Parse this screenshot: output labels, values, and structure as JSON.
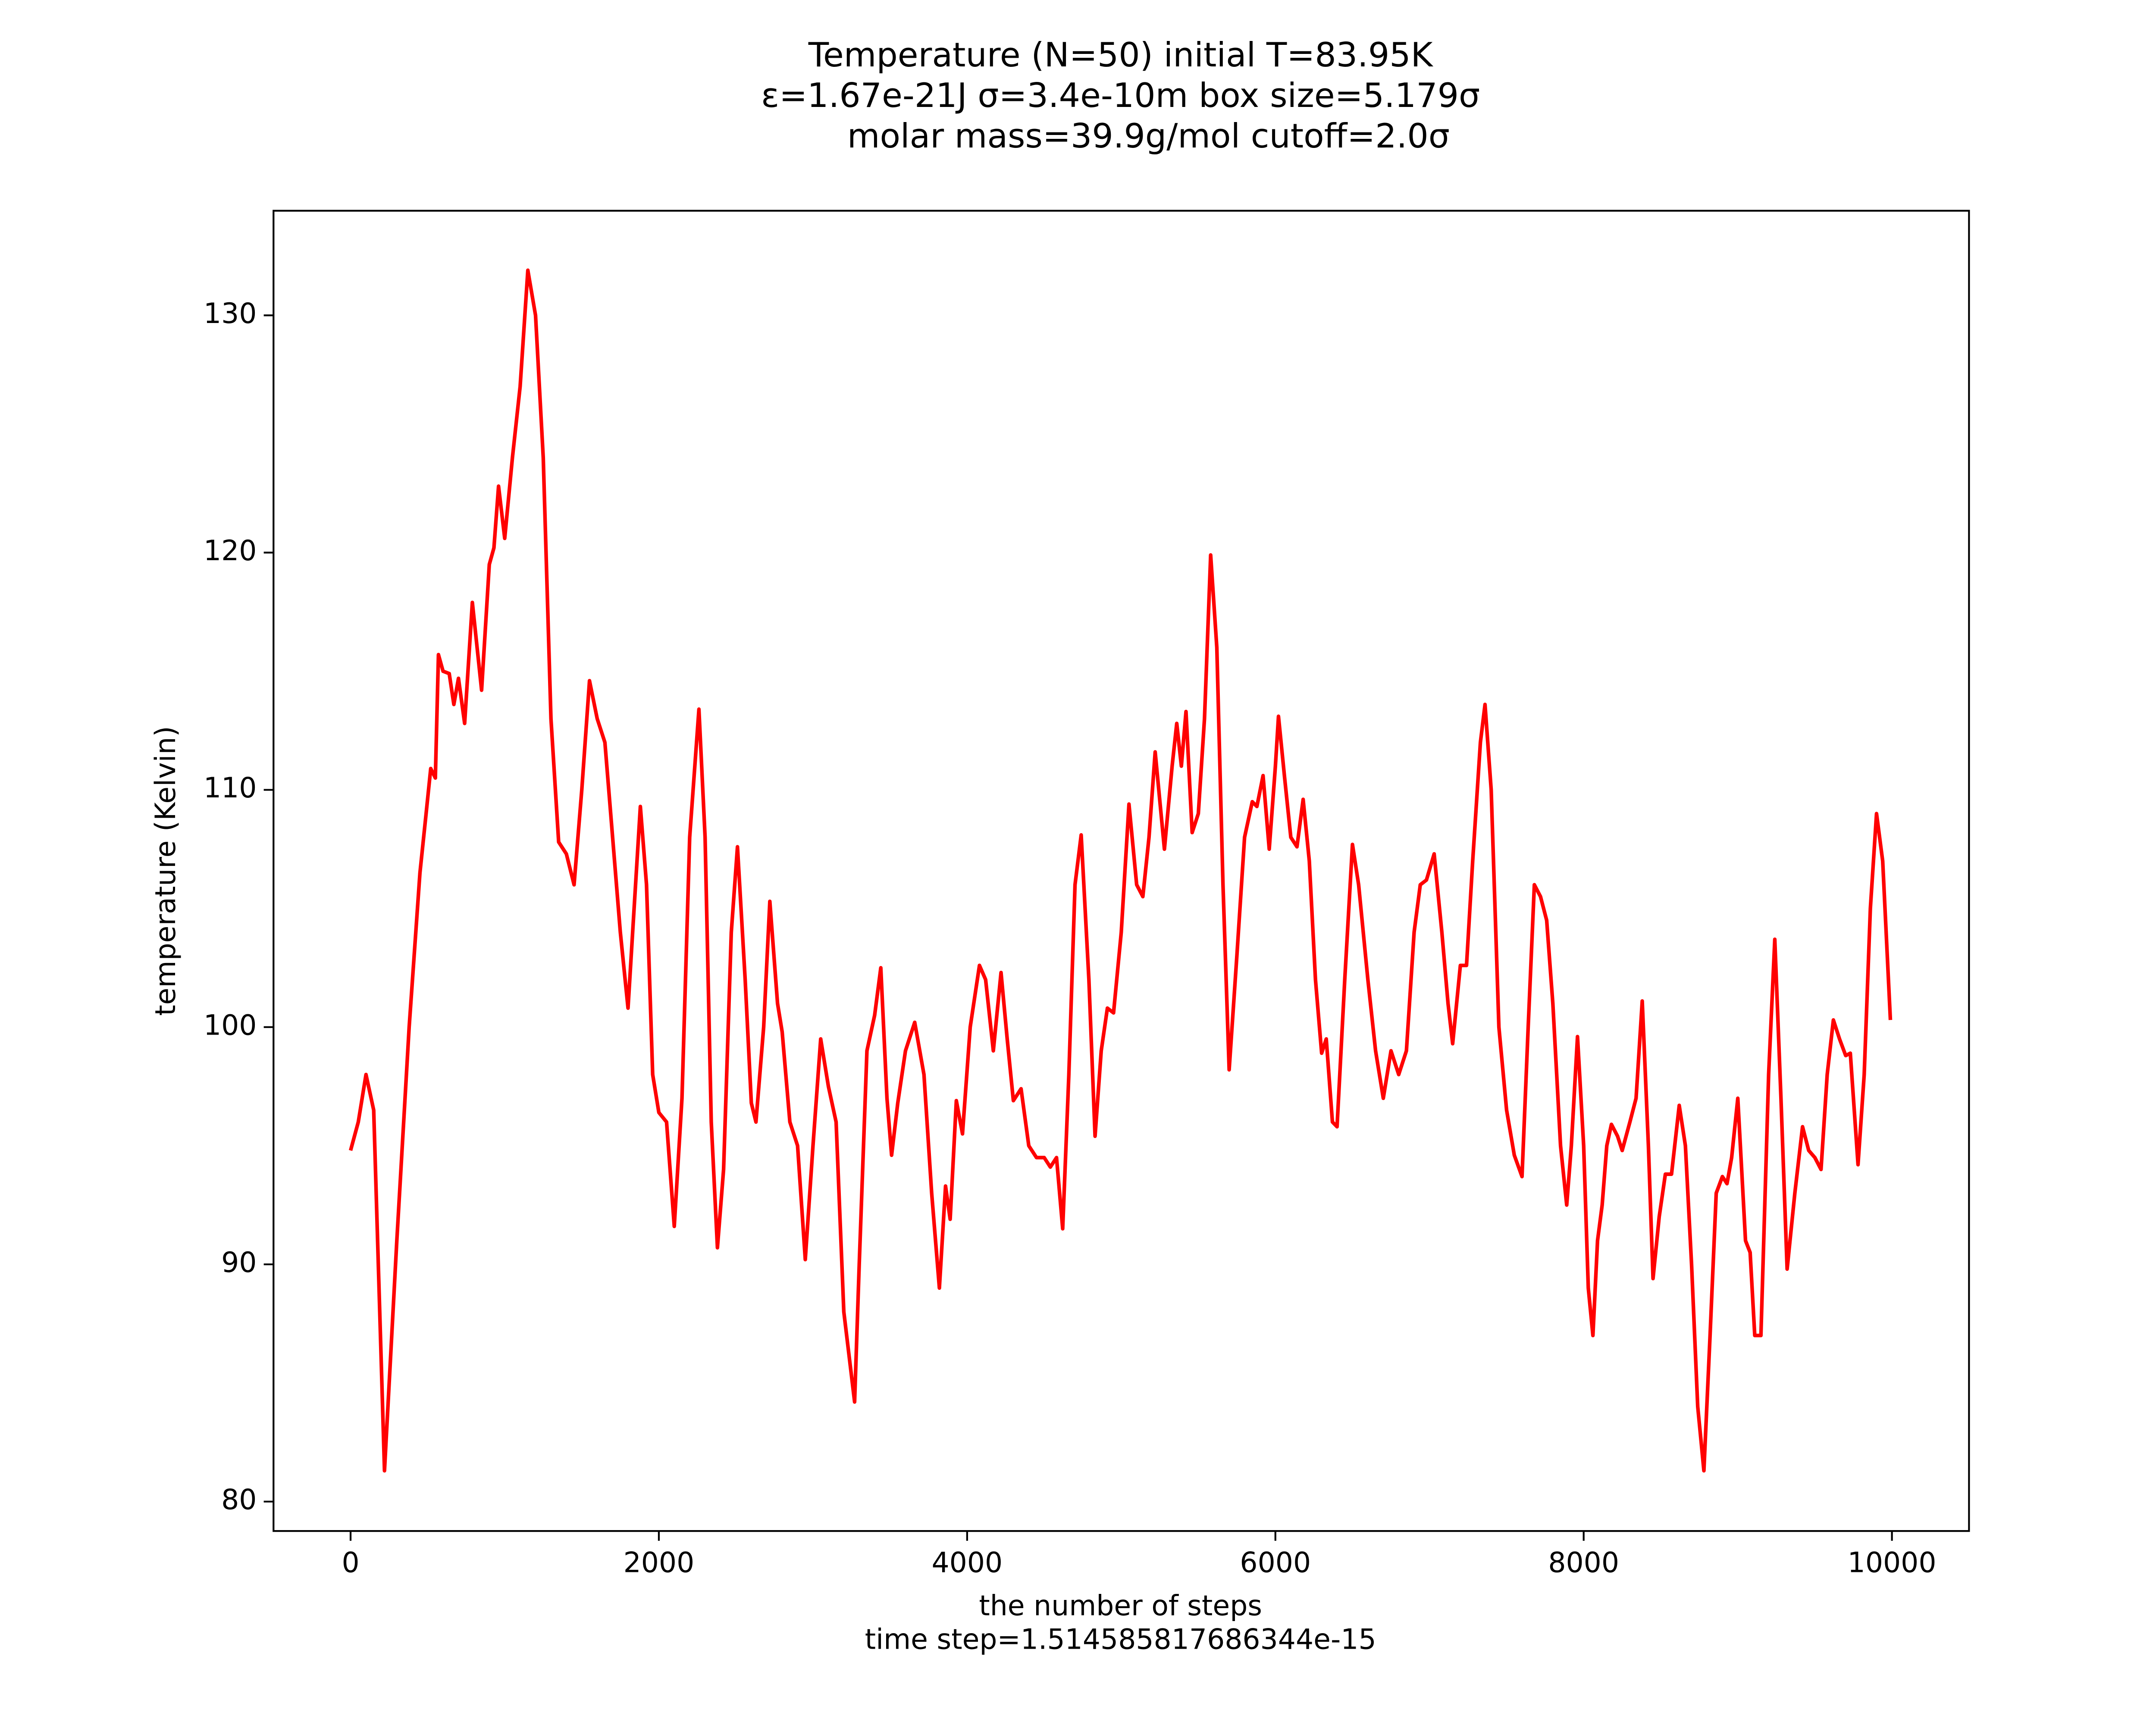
{
  "chart_data": {
    "type": "line",
    "title": [
      "Temperature (N=50) initial T=83.95K",
      "ε=1.67e-21J σ=3.4e-10m box size=5.179σ",
      "molar mass=39.9g/mol cutoff=2.0σ"
    ],
    "xlabel": [
      "the number of steps",
      "time step=1.514585817686344e-15"
    ],
    "ylabel": "temperature (Kelvin)",
    "x": [
      0,
      50,
      100,
      150,
      220,
      300,
      380,
      450,
      490,
      520,
      550,
      570,
      600,
      640,
      670,
      700,
      740,
      790,
      850,
      900,
      930,
      960,
      1000,
      1050,
      1100,
      1150,
      1200,
      1250,
      1300,
      1350,
      1400,
      1450,
      1500,
      1550,
      1600,
      1650,
      1700,
      1750,
      1800,
      1830,
      1880,
      1920,
      1960,
      2000,
      2050,
      2100,
      2150,
      2200,
      2260,
      2300,
      2340,
      2380,
      2420,
      2470,
      2510,
      2560,
      2600,
      2630,
      2680,
      2720,
      2770,
      2800,
      2850,
      2900,
      2950,
      3000,
      3050,
      3100,
      3150,
      3200,
      3270,
      3300,
      3350,
      3400,
      3440,
      3480,
      3510,
      3550,
      3600,
      3660,
      3720,
      3770,
      3820,
      3860,
      3890,
      3930,
      3970,
      4020,
      4080,
      4120,
      4170,
      4220,
      4260,
      4300,
      4350,
      4400,
      4450,
      4500,
      4540,
      4580,
      4620,
      4660,
      4700,
      4740,
      4790,
      4830,
      4870,
      4910,
      4950,
      5000,
      5050,
      5100,
      5140,
      5180,
      5220,
      5280,
      5330,
      5360,
      5390,
      5420,
      5460,
      5500,
      5540,
      5580,
      5620,
      5660,
      5700,
      5750,
      5800,
      5850,
      5880,
      5920,
      5960,
      6000,
      6020,
      6060,
      6100,
      6140,
      6180,
      6220,
      6260,
      6300,
      6330,
      6370,
      6400,
      6450,
      6500,
      6540,
      6600,
      6650,
      6700,
      6750,
      6800,
      6850,
      6900,
      6940,
      6980,
      7030,
      7080,
      7120,
      7150,
      7200,
      7240,
      7280,
      7330,
      7360,
      7400,
      7450,
      7500,
      7550,
      7600,
      7640,
      7680,
      7720,
      7760,
      7800,
      7850,
      7890,
      7920,
      7960,
      8000,
      8030,
      8060,
      8090,
      8120,
      8150,
      8180,
      8220,
      8250,
      8300,
      8340,
      8380,
      8420,
      8450,
      8490,
      8530,
      8570,
      8620,
      8660,
      8700,
      8740,
      8780,
      8820,
      8860,
      8900,
      8930,
      8960,
      9000,
      9050,
      9080,
      9110,
      9150,
      9200,
      9240,
      9280,
      9320,
      9370,
      9420,
      9460,
      9500,
      9540,
      9580,
      9620,
      9660,
      9700,
      9730,
      9780,
      9820,
      9860,
      9900,
      9940,
      9990
    ],
    "series": [
      {
        "color": "#ff0000",
        "values": [
          94.8,
          96,
          98,
          96.5,
          81.3,
          91,
          100,
          106.5,
          109,
          110.9,
          110.5,
          115.7,
          115,
          114.9,
          113.6,
          114.7,
          112.8,
          117.9,
          114.2,
          119.5,
          120.2,
          122.8,
          120.6,
          124,
          127,
          131.9,
          130,
          124,
          113,
          107.8,
          107.3,
          106,
          110,
          114.6,
          113,
          112,
          108,
          104,
          100.8,
          104,
          109.3,
          106,
          98,
          96.4,
          96,
          91.6,
          97,
          108,
          113.4,
          108,
          96,
          90.7,
          94,
          104,
          107.6,
          102,
          96.8,
          96,
          100,
          105.3,
          101,
          99.8,
          96,
          95,
          90.2,
          95,
          99.5,
          97.5,
          96,
          88,
          84.2,
          90,
          99,
          100.5,
          102.5,
          97,
          94.6,
          96.8,
          99,
          100.2,
          98,
          93,
          89,
          93.3,
          91.9,
          96.9,
          95.5,
          100,
          102.6,
          102,
          99,
          102.3,
          99.5,
          96.9,
          97.4,
          95,
          94.5,
          94.5,
          94.1,
          94.5,
          91.5,
          98,
          106,
          108.1,
          102,
          95.4,
          99,
          100.8,
          100.6,
          104,
          109.4,
          106,
          105.5,
          108,
          111.6,
          107.5,
          111,
          112.8,
          111,
          113.3,
          108.2,
          109,
          113,
          119.9,
          116,
          106,
          98.2,
          103,
          108,
          109.5,
          109.3,
          110.6,
          107.5,
          111,
          113.1,
          110.5,
          108,
          107.6,
          109.6,
          107,
          102,
          98.9,
          99.5,
          96,
          95.8,
          102,
          107.7,
          106,
          102,
          99,
          97,
          99,
          98,
          99,
          104,
          106,
          106.2,
          107.3,
          104,
          101,
          99.3,
          102.6,
          102.6,
          107,
          112,
          113.6,
          110,
          100,
          96.5,
          94.6,
          93.7,
          100,
          106,
          105.5,
          104.5,
          101,
          95,
          92.5,
          95,
          99.6,
          95,
          89,
          87,
          91,
          92.5,
          95,
          95.9,
          95.4,
          94.8,
          96,
          97,
          101.1,
          95,
          89.4,
          92,
          93.8,
          93.8,
          96.7,
          95,
          90,
          84,
          81.3,
          87,
          93,
          93.7,
          93.4,
          94.5,
          97,
          91,
          90.5,
          87,
          87,
          98,
          103.7,
          97,
          89.8,
          93,
          95.8,
          94.8,
          94.5,
          94,
          98,
          100.3,
          99.5,
          98.8,
          98.9,
          94.2,
          98,
          105,
          109,
          107,
          100.3
        ]
      }
    ],
    "xlim": [
      -500,
      10500
    ],
    "ylim": [
      78.76,
      134.41
    ],
    "xticks": [
      0,
      2000,
      4000,
      6000,
      8000,
      10000
    ],
    "yticks": [
      80,
      90,
      100,
      110,
      120,
      130
    ],
    "grid": false
  }
}
